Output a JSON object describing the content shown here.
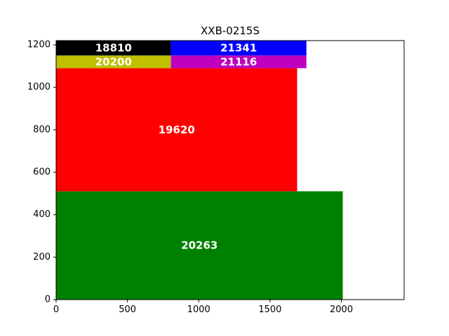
{
  "chart_data": {
    "type": "rectangles",
    "title": "XXB-0215S",
    "xlim": [
      0,
      2440
    ],
    "ylim": [
      0,
      1220
    ],
    "xticks": [
      0,
      500,
      1000,
      1500,
      2000
    ],
    "yticks": [
      0,
      200,
      400,
      600,
      800,
      1000,
      1200
    ],
    "grid": false,
    "rects": [
      {
        "label": "20263",
        "x": 0,
        "y": 0,
        "w": 2010,
        "h": 510,
        "color": "#008000"
      },
      {
        "label": "19620",
        "x": 0,
        "y": 510,
        "w": 1690,
        "h": 580,
        "color": "#ff0000"
      },
      {
        "label": "20200",
        "x": 0,
        "y": 1090,
        "w": 805,
        "h": 60,
        "color": "#bfbf00"
      },
      {
        "label": "21116",
        "x": 805,
        "y": 1090,
        "w": 950,
        "h": 60,
        "color": "#bf00bf"
      },
      {
        "label": "18810",
        "x": 0,
        "y": 1150,
        "w": 805,
        "h": 70,
        "color": "#000000"
      },
      {
        "label": "21341",
        "x": 805,
        "y": 1150,
        "w": 950,
        "h": 70,
        "color": "#0000ff"
      }
    ]
  }
}
